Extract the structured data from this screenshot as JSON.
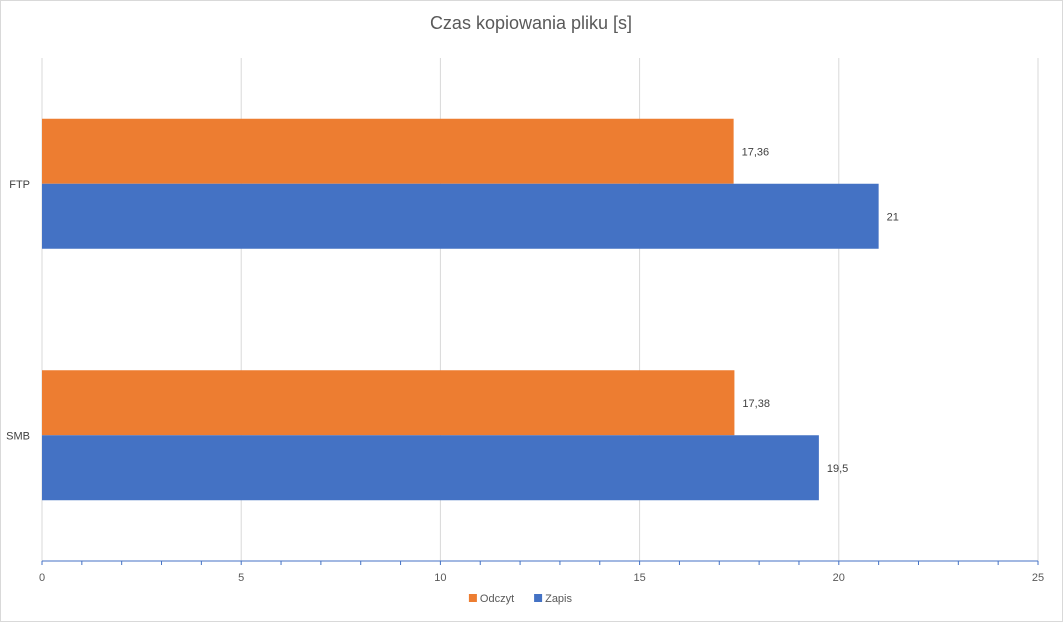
{
  "chart_data": {
    "type": "bar",
    "orientation": "horizontal",
    "title": "Czas kopiowania pliku [s]",
    "categories": [
      "FTP",
      "SMB"
    ],
    "series": [
      {
        "name": "Odczyt",
        "color": "#ED7D31",
        "values": [
          17.36,
          17.38
        ],
        "labels": [
          "17,36",
          "17,38"
        ]
      },
      {
        "name": "Zapis",
        "color": "#4472C4",
        "values": [
          21,
          19.5
        ],
        "labels": [
          "21",
          "19,5"
        ]
      }
    ],
    "xlim": [
      0,
      25
    ],
    "xticks": [
      0,
      5,
      10,
      15,
      20,
      25
    ],
    "xtick_labels": [
      "0",
      "5",
      "10",
      "15",
      "20",
      "25"
    ],
    "grid": true,
    "legend_position": "bottom",
    "axis_color": "#4472C4",
    "grid_color": "#d9d9d9"
  }
}
